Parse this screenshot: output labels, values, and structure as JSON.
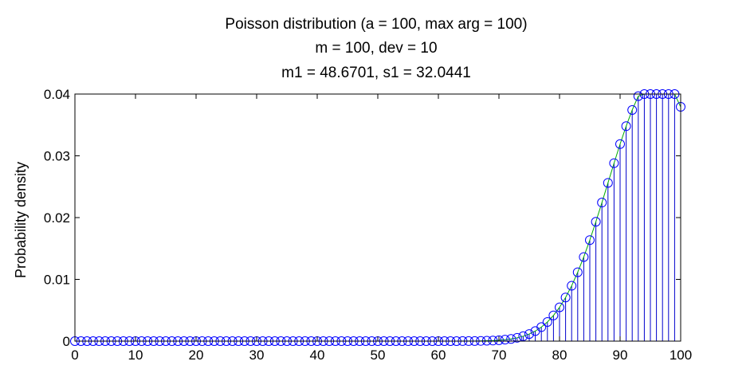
{
  "chart_data": {
    "type": "stem",
    "title_lines": [
      "Poisson distribution (a = 100, max arg = 100)",
      "m = 100, dev = 10",
      "m1 = 48.6701, s1 = 32.0441"
    ],
    "xlabel": "",
    "ylabel": "Probability density",
    "xlim": [
      0,
      100
    ],
    "ylim": [
      0,
      0.04
    ],
    "xticks": [
      "0",
      "10",
      "20",
      "30",
      "40",
      "50",
      "60",
      "70",
      "80",
      "90",
      "100"
    ],
    "yticks": [
      "0",
      "0.01",
      "0.02",
      "0.03",
      "0.04"
    ],
    "grid": false,
    "legend": "none",
    "stem_color": "#0000cc",
    "marker_color": "#0000ff",
    "line_color": "#00aa00",
    "series": [
      {
        "x": [
          0,
          1,
          2,
          3,
          4,
          5,
          6,
          7,
          8,
          9,
          10,
          11,
          12,
          13,
          14,
          15,
          16,
          17,
          18,
          19,
          20,
          21,
          22,
          23,
          24,
          25,
          26,
          27,
          28,
          29,
          30,
          31,
          32,
          33,
          34,
          35,
          36,
          37,
          38,
          39,
          40,
          41,
          42,
          43,
          44,
          45,
          46,
          47,
          48,
          49,
          50,
          51,
          52,
          53,
          54,
          55,
          56,
          57,
          58,
          59,
          60,
          61,
          62,
          63,
          64,
          65,
          66,
          67,
          68,
          69,
          70,
          71,
          72,
          73,
          74,
          75,
          76,
          77,
          78,
          79,
          80,
          81,
          82,
          83,
          84,
          85,
          86,
          87,
          88,
          89,
          90,
          91,
          92,
          93,
          94,
          95,
          96,
          97,
          98,
          99,
          100
        ],
        "values": [
          0,
          0,
          0,
          0,
          0,
          0,
          0,
          0,
          0,
          0,
          0,
          0,
          0,
          0,
          0,
          0,
          0,
          0,
          0,
          0,
          0,
          0,
          0,
          0,
          0,
          0,
          0,
          0,
          0,
          0,
          0,
          0,
          0,
          0,
          0,
          0,
          0,
          0,
          0,
          0,
          0,
          0,
          0,
          0,
          0,
          0,
          0,
          0,
          0,
          0,
          0,
          0,
          0,
          0,
          0,
          0,
          0,
          0,
          0,
          0,
          0,
          0,
          0,
          0,
          1e-05,
          1e-05,
          2e-05,
          4e-05,
          6e-05,
          9e-05,
          0.00015,
          0.00024,
          0.00036,
          0.00054,
          0.0008,
          0.00115,
          0.00163,
          0.00227,
          0.0031,
          0.00416,
          0.00547,
          0.00707,
          0.00896,
          0.01115,
          0.01362,
          0.01636,
          0.01932,
          0.02243,
          0.02562,
          0.02881,
          0.0319,
          0.0348,
          0.03742,
          0.03966,
          0.04143,
          0.04261,
          0.04312,
          0.0429,
          0.04193,
          0.04025,
          0.03793
        ]
      }
    ]
  }
}
